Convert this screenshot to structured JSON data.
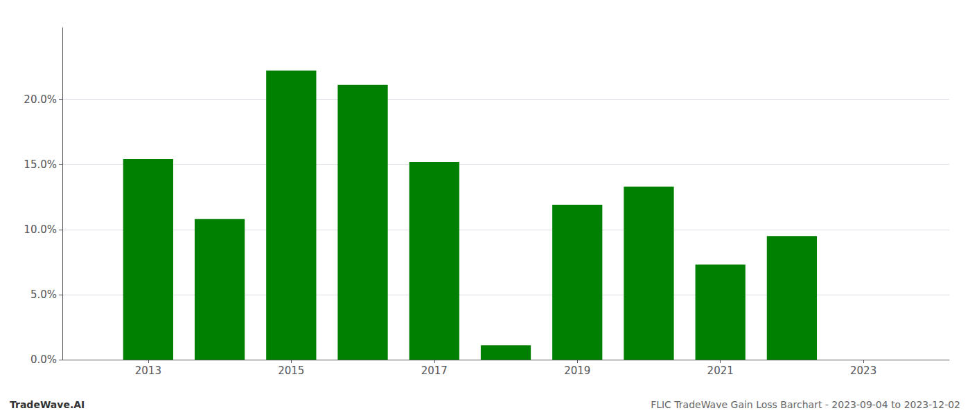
{
  "chart_data": {
    "type": "bar",
    "x": [
      2013,
      2014,
      2015,
      2016,
      2017,
      2018,
      2019,
      2020,
      2021,
      2022,
      2023
    ],
    "values": [
      0.154,
      0.108,
      0.222,
      0.211,
      0.152,
      0.011,
      0.119,
      0.133,
      0.073,
      0.095,
      null
    ],
    "color": "#008000",
    "xlim": [
      2011.8,
      2024.2
    ],
    "xticks": [
      2013,
      2015,
      2017,
      2019,
      2021,
      2023
    ],
    "ylim": [
      0,
      0.255
    ],
    "yticks": [
      {
        "value": 0.0,
        "label": "0.0%"
      },
      {
        "value": 0.05,
        "label": "5.0%"
      },
      {
        "value": 0.1,
        "label": "10.0%"
      },
      {
        "value": 0.15,
        "label": "15.0%"
      },
      {
        "value": 0.2,
        "label": "20.0%"
      }
    ],
    "grid": true,
    "annotations": [
      "TradeWave.AI",
      "FLIC TradeWave Gain Loss Barchart - 2023-09-04 to 2023-12-02"
    ]
  }
}
